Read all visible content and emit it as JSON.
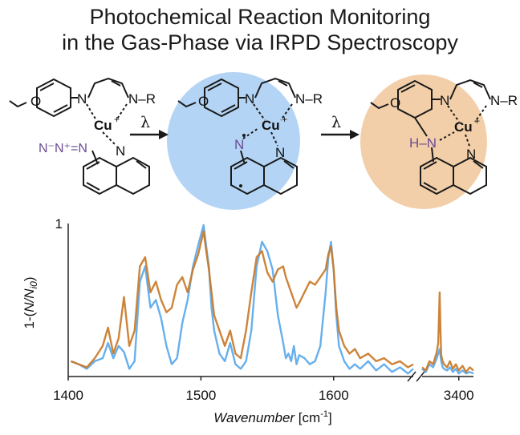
{
  "title": {
    "line1": "Photochemical Reaction Monitoring",
    "line2": "in the Gas-Phase via IRPD Spectroscopy"
  },
  "scheme": {
    "arrow_label": "λ",
    "colors": {
      "mid_bg": "#b3d4f4",
      "right_bg": "#f2cfa9",
      "azide": "#6a4c93",
      "bond": "#1a1a1a"
    },
    "mol1": {
      "ring_substituent": "O",
      "left_n": "N",
      "right_n_r": "N–R",
      "metal": "Cu",
      "metal_charge": "+",
      "azide": "N⁻N⁺=N",
      "quinoline_n": "N"
    },
    "mol2": {
      "ring_substituent": "O",
      "left_n": "N",
      "right_n_r": "N–R",
      "metal": "Cu",
      "metal_charge": "+",
      "nitrene_n": "N",
      "quinoline_n": "N"
    },
    "mol3": {
      "ring_substituent": "O",
      "left_n": "N",
      "right_n_r": "N–R",
      "metal": "Cu",
      "metal_charge": "+",
      "nh": "H–N",
      "quinoline_n": "N"
    }
  },
  "chart_data": {
    "type": "line",
    "ylabel_prefix": "1-(",
    "ylabel_italic": "N/N",
    "ylabel_sub": "i0",
    "ylabel_suffix": ")",
    "xlabel_italic": "Wavenumber",
    "xlabel_unit": " [cm",
    "xlabel_sup": "-1",
    "xlabel_close": "]",
    "ylim": [
      0,
      1
    ],
    "y_ticks": [
      "1"
    ],
    "x_ticks_left": [
      1400,
      1500,
      1600
    ],
    "x_ticks_right": [
      3400
    ],
    "xlim_left": [
      1400,
      1660
    ],
    "xlim_right": [
      3350,
      3420
    ],
    "axis_break": true,
    "series": [
      {
        "color": "#5aa9ec",
        "segment": "left",
        "x": [
          1402,
          1408,
          1414,
          1420,
          1426,
          1430,
          1434,
          1438,
          1442,
          1446,
          1450,
          1454,
          1458,
          1462,
          1466,
          1470,
          1474,
          1478,
          1482,
          1486,
          1490,
          1494,
          1498,
          1502,
          1504,
          1506,
          1508,
          1510,
          1514,
          1518,
          1522,
          1526,
          1530,
          1534,
          1538,
          1542,
          1546,
          1550,
          1554,
          1558,
          1562,
          1564,
          1566,
          1568,
          1570,
          1572,
          1574,
          1578,
          1582,
          1586,
          1590,
          1594,
          1596,
          1598,
          1600,
          1602,
          1604,
          1608,
          1612,
          1616,
          1620,
          1626,
          1632,
          1638,
          1644,
          1650,
          1656,
          1660
        ],
        "y": [
          0.1,
          0.08,
          0.05,
          0.1,
          0.12,
          0.22,
          0.12,
          0.2,
          0.16,
          0.05,
          0.1,
          0.62,
          0.72,
          0.45,
          0.5,
          0.38,
          0.2,
          0.08,
          0.12,
          0.35,
          0.5,
          0.72,
          0.86,
          0.99,
          0.85,
          0.72,
          0.45,
          0.3,
          0.15,
          0.1,
          0.22,
          0.08,
          0.05,
          0.1,
          0.3,
          0.72,
          0.88,
          0.82,
          0.7,
          0.4,
          0.22,
          0.12,
          0.15,
          0.1,
          0.2,
          0.08,
          0.14,
          0.12,
          0.08,
          0.1,
          0.2,
          0.55,
          0.78,
          0.88,
          0.7,
          0.4,
          0.2,
          0.1,
          0.05,
          0.08,
          0.05,
          0.1,
          0.04,
          0.08,
          0.03,
          0.06,
          0.02,
          0.05
        ]
      },
      {
        "color": "#c97a28",
        "segment": "left",
        "x": [
          1402,
          1408,
          1414,
          1420,
          1426,
          1430,
          1434,
          1438,
          1442,
          1446,
          1450,
          1454,
          1458,
          1462,
          1466,
          1470,
          1474,
          1478,
          1482,
          1486,
          1490,
          1494,
          1498,
          1502,
          1504,
          1506,
          1508,
          1510,
          1514,
          1518,
          1522,
          1526,
          1530,
          1534,
          1538,
          1542,
          1546,
          1550,
          1554,
          1558,
          1562,
          1564,
          1566,
          1568,
          1570,
          1572,
          1574,
          1578,
          1582,
          1586,
          1590,
          1594,
          1596,
          1598,
          1600,
          1602,
          1604,
          1608,
          1612,
          1616,
          1620,
          1626,
          1632,
          1638,
          1644,
          1650,
          1656,
          1660
        ],
        "y": [
          0.1,
          0.08,
          0.06,
          0.12,
          0.2,
          0.32,
          0.15,
          0.25,
          0.52,
          0.2,
          0.3,
          0.72,
          0.78,
          0.55,
          0.62,
          0.5,
          0.42,
          0.45,
          0.6,
          0.65,
          0.55,
          0.7,
          0.8,
          0.95,
          0.82,
          0.7,
          0.55,
          0.4,
          0.3,
          0.2,
          0.3,
          0.15,
          0.12,
          0.3,
          0.55,
          0.78,
          0.82,
          0.68,
          0.62,
          0.7,
          0.72,
          0.65,
          0.6,
          0.55,
          0.5,
          0.45,
          0.48,
          0.55,
          0.62,
          0.6,
          0.65,
          0.7,
          0.8,
          0.85,
          0.7,
          0.45,
          0.3,
          0.2,
          0.15,
          0.18,
          0.12,
          0.15,
          0.1,
          0.12,
          0.08,
          0.1,
          0.06,
          0.08
        ]
      },
      {
        "color": "#5aa9ec",
        "segment": "right",
        "x": [
          3350,
          3355,
          3360,
          3365,
          3370,
          3372,
          3374,
          3376,
          3378,
          3380,
          3384,
          3388,
          3392,
          3396,
          3400,
          3405,
          3410,
          3415,
          3420
        ],
        "y": [
          0.05,
          0.03,
          0.08,
          0.06,
          0.12,
          0.15,
          0.18,
          0.1,
          0.06,
          0.05,
          0.04,
          0.06,
          0.03,
          0.05,
          0.02,
          0.04,
          0.02,
          0.03,
          0.02
        ]
      },
      {
        "color": "#c97a28",
        "segment": "right",
        "x": [
          3350,
          3355,
          3360,
          3365,
          3370,
          3372,
          3374,
          3375,
          3376,
          3378,
          3380,
          3384,
          3388,
          3392,
          3396,
          3400,
          3405,
          3410,
          3415,
          3420
        ],
        "y": [
          0.06,
          0.04,
          0.1,
          0.08,
          0.16,
          0.22,
          0.55,
          0.3,
          0.14,
          0.1,
          0.08,
          0.06,
          0.1,
          0.05,
          0.08,
          0.04,
          0.07,
          0.03,
          0.06,
          0.04
        ]
      }
    ]
  }
}
